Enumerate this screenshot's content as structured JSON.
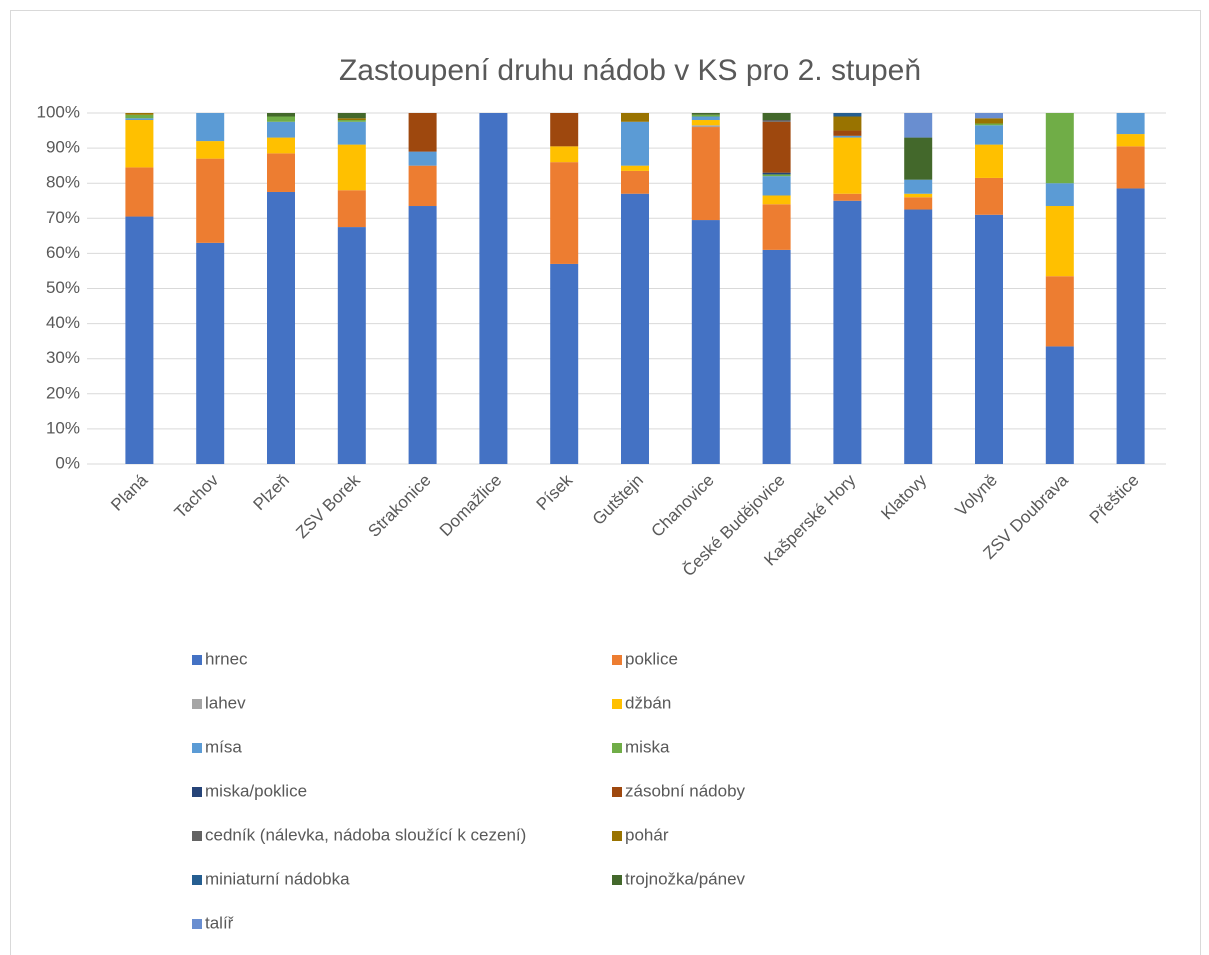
{
  "chart_data": {
    "type": "stacked_bar",
    "title": "Zastoupení druhu nádob v KS pro 2. stupeň",
    "categories": [
      "Planá",
      "Tachov",
      "Plzeň",
      "ZSV Borek",
      "Strakonice",
      "Domažlice",
      "Písek",
      "Gutštejn",
      "Chanovice",
      "České Budějovice",
      "Kašperské Hory",
      "Klatovy",
      "Volyně",
      "ZSV Doubrava",
      "Přeštice"
    ],
    "series": [
      {
        "name": "hrnec",
        "color": "#4472c4",
        "values": [
          70.5,
          63,
          77.5,
          67.5,
          73.5,
          100,
          57,
          77,
          69.5,
          61,
          75,
          72.5,
          71,
          33.5,
          78.5
        ]
      },
      {
        "name": "poklice",
        "color": "#ed7d31",
        "values": [
          14,
          24,
          11,
          10.5,
          11.5,
          0,
          29,
          6.5,
          26.5,
          13,
          2,
          3.5,
          10.5,
          20,
          12
        ]
      },
      {
        "name": "lahev",
        "color": "#a5a5a5",
        "values": [
          0,
          0,
          0,
          0,
          0,
          0,
          0,
          0,
          0.5,
          0,
          0,
          0,
          0,
          0,
          0
        ]
      },
      {
        "name": "džbán",
        "color": "#ffc000",
        "values": [
          13.5,
          5,
          4.5,
          13,
          0,
          0,
          4.5,
          1.5,
          1.5,
          2.5,
          16,
          1,
          9.5,
          20,
          3.5
        ]
      },
      {
        "name": "mísa",
        "color": "#5b9bd5",
        "values": [
          0.5,
          8,
          4.5,
          6.5,
          4,
          0,
          0,
          12.5,
          1,
          5.5,
          0.5,
          4,
          5.5,
          6.5,
          6
        ]
      },
      {
        "name": "miska",
        "color": "#70ad47",
        "values": [
          1,
          0,
          1.5,
          0.5,
          0,
          0,
          0,
          0,
          0.5,
          0.5,
          0,
          0,
          0.5,
          20,
          0
        ]
      },
      {
        "name": "miska/poklice",
        "color": "#264478",
        "values": [
          0,
          0,
          0,
          0,
          0,
          0,
          0,
          0,
          0,
          0.5,
          0,
          0,
          0,
          0,
          0
        ]
      },
      {
        "name": "zásobní nádoby",
        "color": "#9e480e",
        "values": [
          0,
          0,
          0,
          0,
          11,
          0,
          9.5,
          0,
          0,
          14.5,
          1.5,
          0,
          0,
          0,
          0
        ]
      },
      {
        "name": "cedník (nálevka, nádoba sloužící k cezení)",
        "color": "#636363",
        "values": [
          0,
          0,
          0,
          0,
          0,
          0,
          0,
          0,
          0,
          0.5,
          0,
          0,
          0,
          0,
          0
        ]
      },
      {
        "name": "pohár",
        "color": "#997300",
        "values": [
          0.5,
          0,
          0,
          0.5,
          0,
          0,
          0,
          2.5,
          0,
          0,
          4,
          0,
          1.5,
          0,
          0
        ]
      },
      {
        "name": "miniaturní nádobka",
        "color": "#255e91",
        "values": [
          0,
          0,
          0,
          0,
          0,
          0,
          0,
          0,
          0,
          0,
          1,
          0,
          0,
          0,
          0
        ]
      },
      {
        "name": "trojnožka/pánev",
        "color": "#43682b",
        "values": [
          0,
          0,
          1,
          1.5,
          0,
          0,
          0,
          0,
          0.5,
          2,
          0,
          12,
          0,
          0,
          0
        ]
      },
      {
        "name": "talíř",
        "color": "#698ed0",
        "values": [
          0,
          0,
          0,
          0,
          0,
          0,
          0,
          0,
          0,
          0,
          0,
          7,
          1.5,
          0,
          0
        ]
      }
    ],
    "ylim": [
      0,
      100
    ],
    "yticks": [
      {
        "value": 0,
        "label": "0%"
      },
      {
        "value": 10,
        "label": "10%"
      },
      {
        "value": 20,
        "label": "20%"
      },
      {
        "value": 30,
        "label": "30%"
      },
      {
        "value": 40,
        "label": "40%"
      },
      {
        "value": 50,
        "label": "50%"
      },
      {
        "value": 60,
        "label": "60%"
      },
      {
        "value": 70,
        "label": "70%"
      },
      {
        "value": 80,
        "label": "80%"
      },
      {
        "value": 90,
        "label": "90%"
      },
      {
        "value": 100,
        "label": "100%"
      }
    ],
    "grid": true,
    "legend": "bottom"
  }
}
